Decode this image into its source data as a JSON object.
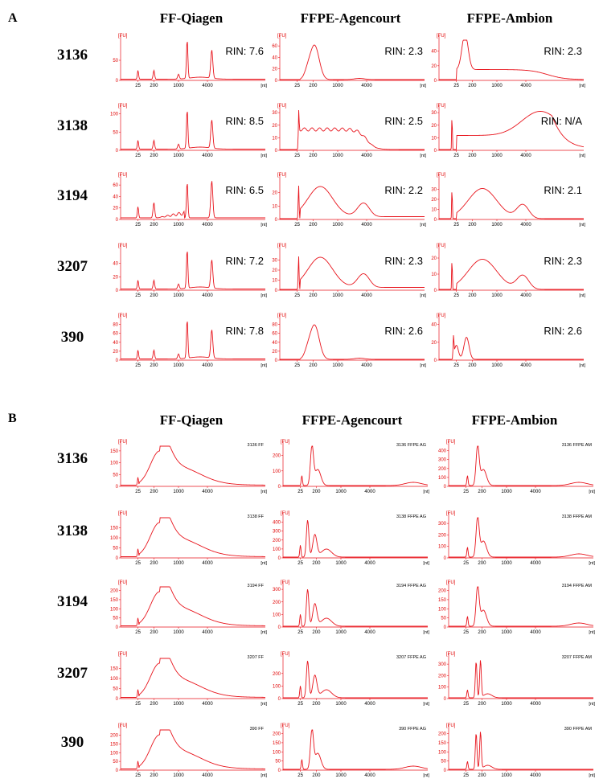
{
  "colors": {
    "trace": "#e8141c",
    "axis": "#e8141c",
    "text": "#000000"
  },
  "panels": [
    {
      "letter": "A",
      "columns": [
        "FF-Qiagen",
        "FFPE-Agencourt",
        "FFPE-Ambion"
      ],
      "rows": [
        "3136",
        "3138",
        "3194",
        "3207",
        "390"
      ]
    },
    {
      "letter": "B",
      "columns": [
        "FF-Qiagen",
        "FFPE-Agencourt",
        "FFPE-Ambion"
      ],
      "rows": [
        "3136",
        "3138",
        "3194",
        "3207",
        "390"
      ]
    }
  ],
  "chart_data": [
    {
      "id": "A-3136-FF",
      "type": "line",
      "ylabel": "[FU]",
      "xlabel": "[nt]",
      "xticks": [
        "25",
        "200",
        "1000",
        "4000"
      ],
      "ylim": [
        0,
        100
      ],
      "yticks": [
        0,
        50
      ],
      "annotation": "RIN: 7.6",
      "shape": "ff"
    },
    {
      "id": "A-3136-AG",
      "type": "line",
      "ylabel": "[FU]",
      "xlabel": "[nt]",
      "xticks": [
        "25",
        "200",
        "1000",
        "4000"
      ],
      "ylim": [
        0,
        70
      ],
      "yticks": [
        0,
        20,
        40,
        60
      ],
      "annotation": "RIN: 2.3",
      "shape": "agA"
    },
    {
      "id": "A-3136-AM",
      "type": "line",
      "ylabel": "[FU]",
      "xlabel": "[nt]",
      "xticks": [
        "25",
        "200",
        "1000",
        "4000"
      ],
      "ylim": [
        0,
        55
      ],
      "yticks": [
        0,
        20,
        40
      ],
      "annotation": "RIN: 2.3",
      "shape": "amA1"
    },
    {
      "id": "A-3138-FF",
      "type": "line",
      "ylabel": "[FU]",
      "xlabel": "[nt]",
      "xticks": [
        "25",
        "200",
        "1000",
        "4000"
      ],
      "ylim": [
        0,
        110
      ],
      "yticks": [
        0,
        50,
        100
      ],
      "annotation": "RIN: 8.5",
      "shape": "ff"
    },
    {
      "id": "A-3138-AG",
      "type": "line",
      "ylabel": "[FU]",
      "xlabel": "[nt]",
      "xticks": [
        "25",
        "200",
        "1000",
        "4000"
      ],
      "ylim": [
        0,
        32
      ],
      "yticks": [
        0,
        10,
        20,
        30
      ],
      "annotation": "RIN: 2.5",
      "shape": "agA2"
    },
    {
      "id": "A-3138-AM",
      "type": "line",
      "ylabel": "[FU]",
      "xlabel": "[nt]",
      "xticks": [
        "25",
        "200",
        "1000",
        "4000"
      ],
      "ylim": [
        0,
        32
      ],
      "yticks": [
        0,
        10,
        20,
        30
      ],
      "annotation": "RIN: N/A",
      "shape": "amA2"
    },
    {
      "id": "A-3194-FF",
      "type": "line",
      "ylabel": "[FU]",
      "xlabel": "[nt]",
      "xticks": [
        "25",
        "200",
        "1000",
        "4000"
      ],
      "ylim": [
        0,
        70
      ],
      "yticks": [
        0,
        20,
        40,
        60
      ],
      "annotation": "RIN: 6.5",
      "shape": "ff2"
    },
    {
      "id": "A-3194-AG",
      "type": "line",
      "ylabel": "[FU]",
      "xlabel": "[nt]",
      "xticks": [
        "25",
        "200",
        "1000",
        "4000"
      ],
      "ylim": [
        0,
        30
      ],
      "yticks": [
        0,
        10,
        20
      ],
      "annotation": "RIN: 2.2",
      "shape": "agA3"
    },
    {
      "id": "A-3194-AM",
      "type": "line",
      "ylabel": "[FU]",
      "xlabel": "[nt]",
      "xticks": [
        "25",
        "200",
        "1000",
        "4000"
      ],
      "ylim": [
        0,
        40
      ],
      "yticks": [
        0,
        10,
        20,
        30
      ],
      "annotation": "RIN: 2.1",
      "shape": "amA3"
    },
    {
      "id": "A-3207-FF",
      "type": "line",
      "ylabel": "[FU]",
      "xlabel": "[nt]",
      "xticks": [
        "25",
        "200",
        "1000",
        "4000"
      ],
      "ylim": [
        0,
        60
      ],
      "yticks": [
        0,
        20,
        40
      ],
      "annotation": "RIN: 7.2",
      "shape": "ff"
    },
    {
      "id": "A-3207-AG",
      "type": "line",
      "ylabel": "[FU]",
      "xlabel": "[nt]",
      "xticks": [
        "25",
        "200",
        "1000",
        "4000"
      ],
      "ylim": [
        0,
        40
      ],
      "yticks": [
        0,
        10,
        20,
        30
      ],
      "annotation": "RIN: 2.3",
      "shape": "agA3"
    },
    {
      "id": "A-3207-AM",
      "type": "line",
      "ylabel": "[FU]",
      "xlabel": "[nt]",
      "xticks": [
        "25",
        "200",
        "1000",
        "4000"
      ],
      "ylim": [
        0,
        25
      ],
      "yticks": [
        0,
        10,
        20
      ],
      "annotation": "RIN: 2.3",
      "shape": "amA3"
    },
    {
      "id": "A-390-FF",
      "type": "line",
      "ylabel": "[FU]",
      "xlabel": "[nt]",
      "xticks": [
        "25",
        "200",
        "1000",
        "4000"
      ],
      "ylim": [
        0,
        90
      ],
      "yticks": [
        0,
        20,
        40,
        60,
        80
      ],
      "annotation": "RIN: 7.8",
      "shape": "ff"
    },
    {
      "id": "A-390-AG",
      "type": "line",
      "ylabel": "[FU]",
      "xlabel": "[nt]",
      "xticks": [
        "25",
        "200",
        "1000",
        "4000"
      ],
      "ylim": [
        0,
        90
      ],
      "yticks": [
        0,
        20,
        40,
        60,
        80
      ],
      "annotation": "RIN: 2.6",
      "shape": "agA"
    },
    {
      "id": "A-390-AM",
      "type": "line",
      "ylabel": "[FU]",
      "xlabel": "[nt]",
      "xticks": [
        "25",
        "200",
        "1000",
        "4000"
      ],
      "ylim": [
        0,
        45
      ],
      "yticks": [
        0,
        20,
        40
      ],
      "annotation": "RIN: 2.6",
      "shape": "amA5"
    },
    {
      "id": "B-3136-FF",
      "type": "line",
      "ylabel": "[FU]",
      "xlabel": "[nt]",
      "xticks": [
        "25",
        "200",
        "1000",
        "4000"
      ],
      "ylim": [
        0,
        170
      ],
      "yticks": [
        0,
        50,
        100,
        150
      ],
      "annotation": "3136 FF",
      "shape": "ffB"
    },
    {
      "id": "B-3136-AG",
      "type": "line",
      "ylabel": "[FU]",
      "xlabel": "[nt]",
      "xticks": [
        "25",
        "200",
        "1000",
        "4000"
      ],
      "ylim": [
        0,
        260
      ],
      "yticks": [
        0,
        100,
        200
      ],
      "annotation": "3136 FFPE AG",
      "shape": "spike"
    },
    {
      "id": "B-3136-AM",
      "type": "line",
      "ylabel": "[FU]",
      "xlabel": "[nt]",
      "xticks": [
        "25",
        "200",
        "1000",
        "4000"
      ],
      "ylim": [
        0,
        450
      ],
      "yticks": [
        0,
        100,
        200,
        300,
        400
      ],
      "annotation": "3136 FFPE AM",
      "shape": "spike"
    },
    {
      "id": "B-3138-FF",
      "type": "line",
      "ylabel": "[FU]",
      "xlabel": "[nt]",
      "xticks": [
        "25",
        "200",
        "1000",
        "4000"
      ],
      "ylim": [
        0,
        200
      ],
      "yticks": [
        0,
        50,
        100,
        150
      ],
      "annotation": "3138 FF",
      "shape": "ffB"
    },
    {
      "id": "B-3138-AG",
      "type": "line",
      "ylabel": "[FU]",
      "xlabel": "[nt]",
      "xticks": [
        "25",
        "200",
        "1000",
        "4000"
      ],
      "ylim": [
        0,
        450
      ],
      "yticks": [
        0,
        100,
        200,
        300,
        400
      ],
      "annotation": "3138 FFPE AG",
      "shape": "spike2"
    },
    {
      "id": "B-3138-AM",
      "type": "line",
      "ylabel": "[FU]",
      "xlabel": "[nt]",
      "xticks": [
        "25",
        "200",
        "1000",
        "4000"
      ],
      "ylim": [
        0,
        350
      ],
      "yticks": [
        0,
        100,
        200,
        300
      ],
      "annotation": "3138 FFPE AM",
      "shape": "spike"
    },
    {
      "id": "B-3194-FF",
      "type": "line",
      "ylabel": "[FU]",
      "xlabel": "[nt]",
      "xticks": [
        "25",
        "200",
        "1000",
        "4000"
      ],
      "ylim": [
        0,
        220
      ],
      "yticks": [
        0,
        50,
        100,
        150,
        200
      ],
      "annotation": "3194 FF",
      "shape": "ffB"
    },
    {
      "id": "B-3194-AG",
      "type": "line",
      "ylabel": "[FU]",
      "xlabel": "[nt]",
      "xticks": [
        "25",
        "200",
        "1000",
        "4000"
      ],
      "ylim": [
        0,
        320
      ],
      "yticks": [
        0,
        100,
        200,
        300
      ],
      "annotation": "3194 FFPE AG",
      "shape": "spike2"
    },
    {
      "id": "B-3194-AM",
      "type": "line",
      "ylabel": "[FU]",
      "xlabel": "[nt]",
      "xticks": [
        "25",
        "200",
        "1000",
        "4000"
      ],
      "ylim": [
        0,
        220
      ],
      "yticks": [
        0,
        50,
        100,
        150,
        200
      ],
      "annotation": "3194 FFPE AM",
      "shape": "spike"
    },
    {
      "id": "B-3207-FF",
      "type": "line",
      "ylabel": "[FU]",
      "xlabel": "[nt]",
      "xticks": [
        "25",
        "200",
        "1000",
        "4000"
      ],
      "ylim": [
        0,
        200
      ],
      "yticks": [
        0,
        50,
        100,
        150
      ],
      "annotation": "3207 FF",
      "shape": "ffB"
    },
    {
      "id": "B-3207-AG",
      "type": "line",
      "ylabel": "[FU]",
      "xlabel": "[nt]",
      "xticks": [
        "25",
        "200",
        "1000",
        "4000"
      ],
      "ylim": [
        0,
        320
      ],
      "yticks": [
        0,
        100,
        200
      ],
      "annotation": "3207 FFPE AG",
      "shape": "spike2"
    },
    {
      "id": "B-3207-AM",
      "type": "line",
      "ylabel": "[FU]",
      "xlabel": "[nt]",
      "xticks": [
        "25",
        "200",
        "1000",
        "4000"
      ],
      "ylim": [
        0,
        350
      ],
      "yticks": [
        0,
        100,
        200,
        300
      ],
      "annotation": "3207 FFPE AM",
      "shape": "spike3"
    },
    {
      "id": "B-390-FF",
      "type": "line",
      "ylabel": "[FU]",
      "xlabel": "[nt]",
      "xticks": [
        "25",
        "200",
        "1000",
        "4000"
      ],
      "ylim": [
        0,
        230
      ],
      "yticks": [
        0,
        50,
        100,
        150,
        200
      ],
      "annotation": "390 FF",
      "shape": "ffB"
    },
    {
      "id": "B-390-AG",
      "type": "line",
      "ylabel": "[FU]",
      "xlabel": "[nt]",
      "xticks": [
        "25",
        "200",
        "1000",
        "4000"
      ],
      "ylim": [
        0,
        220
      ],
      "yticks": [
        0,
        50,
        100,
        150,
        200
      ],
      "annotation": "390 FFPE AG",
      "shape": "spike"
    },
    {
      "id": "B-390-AM",
      "type": "line",
      "ylabel": "[FU]",
      "xlabel": "[nt]",
      "xticks": [
        "25",
        "200",
        "1000",
        "4000"
      ],
      "ylim": [
        0,
        220
      ],
      "yticks": [
        0,
        50,
        100,
        150,
        200
      ],
      "annotation": "390 FFPE AM",
      "shape": "spike3"
    }
  ]
}
